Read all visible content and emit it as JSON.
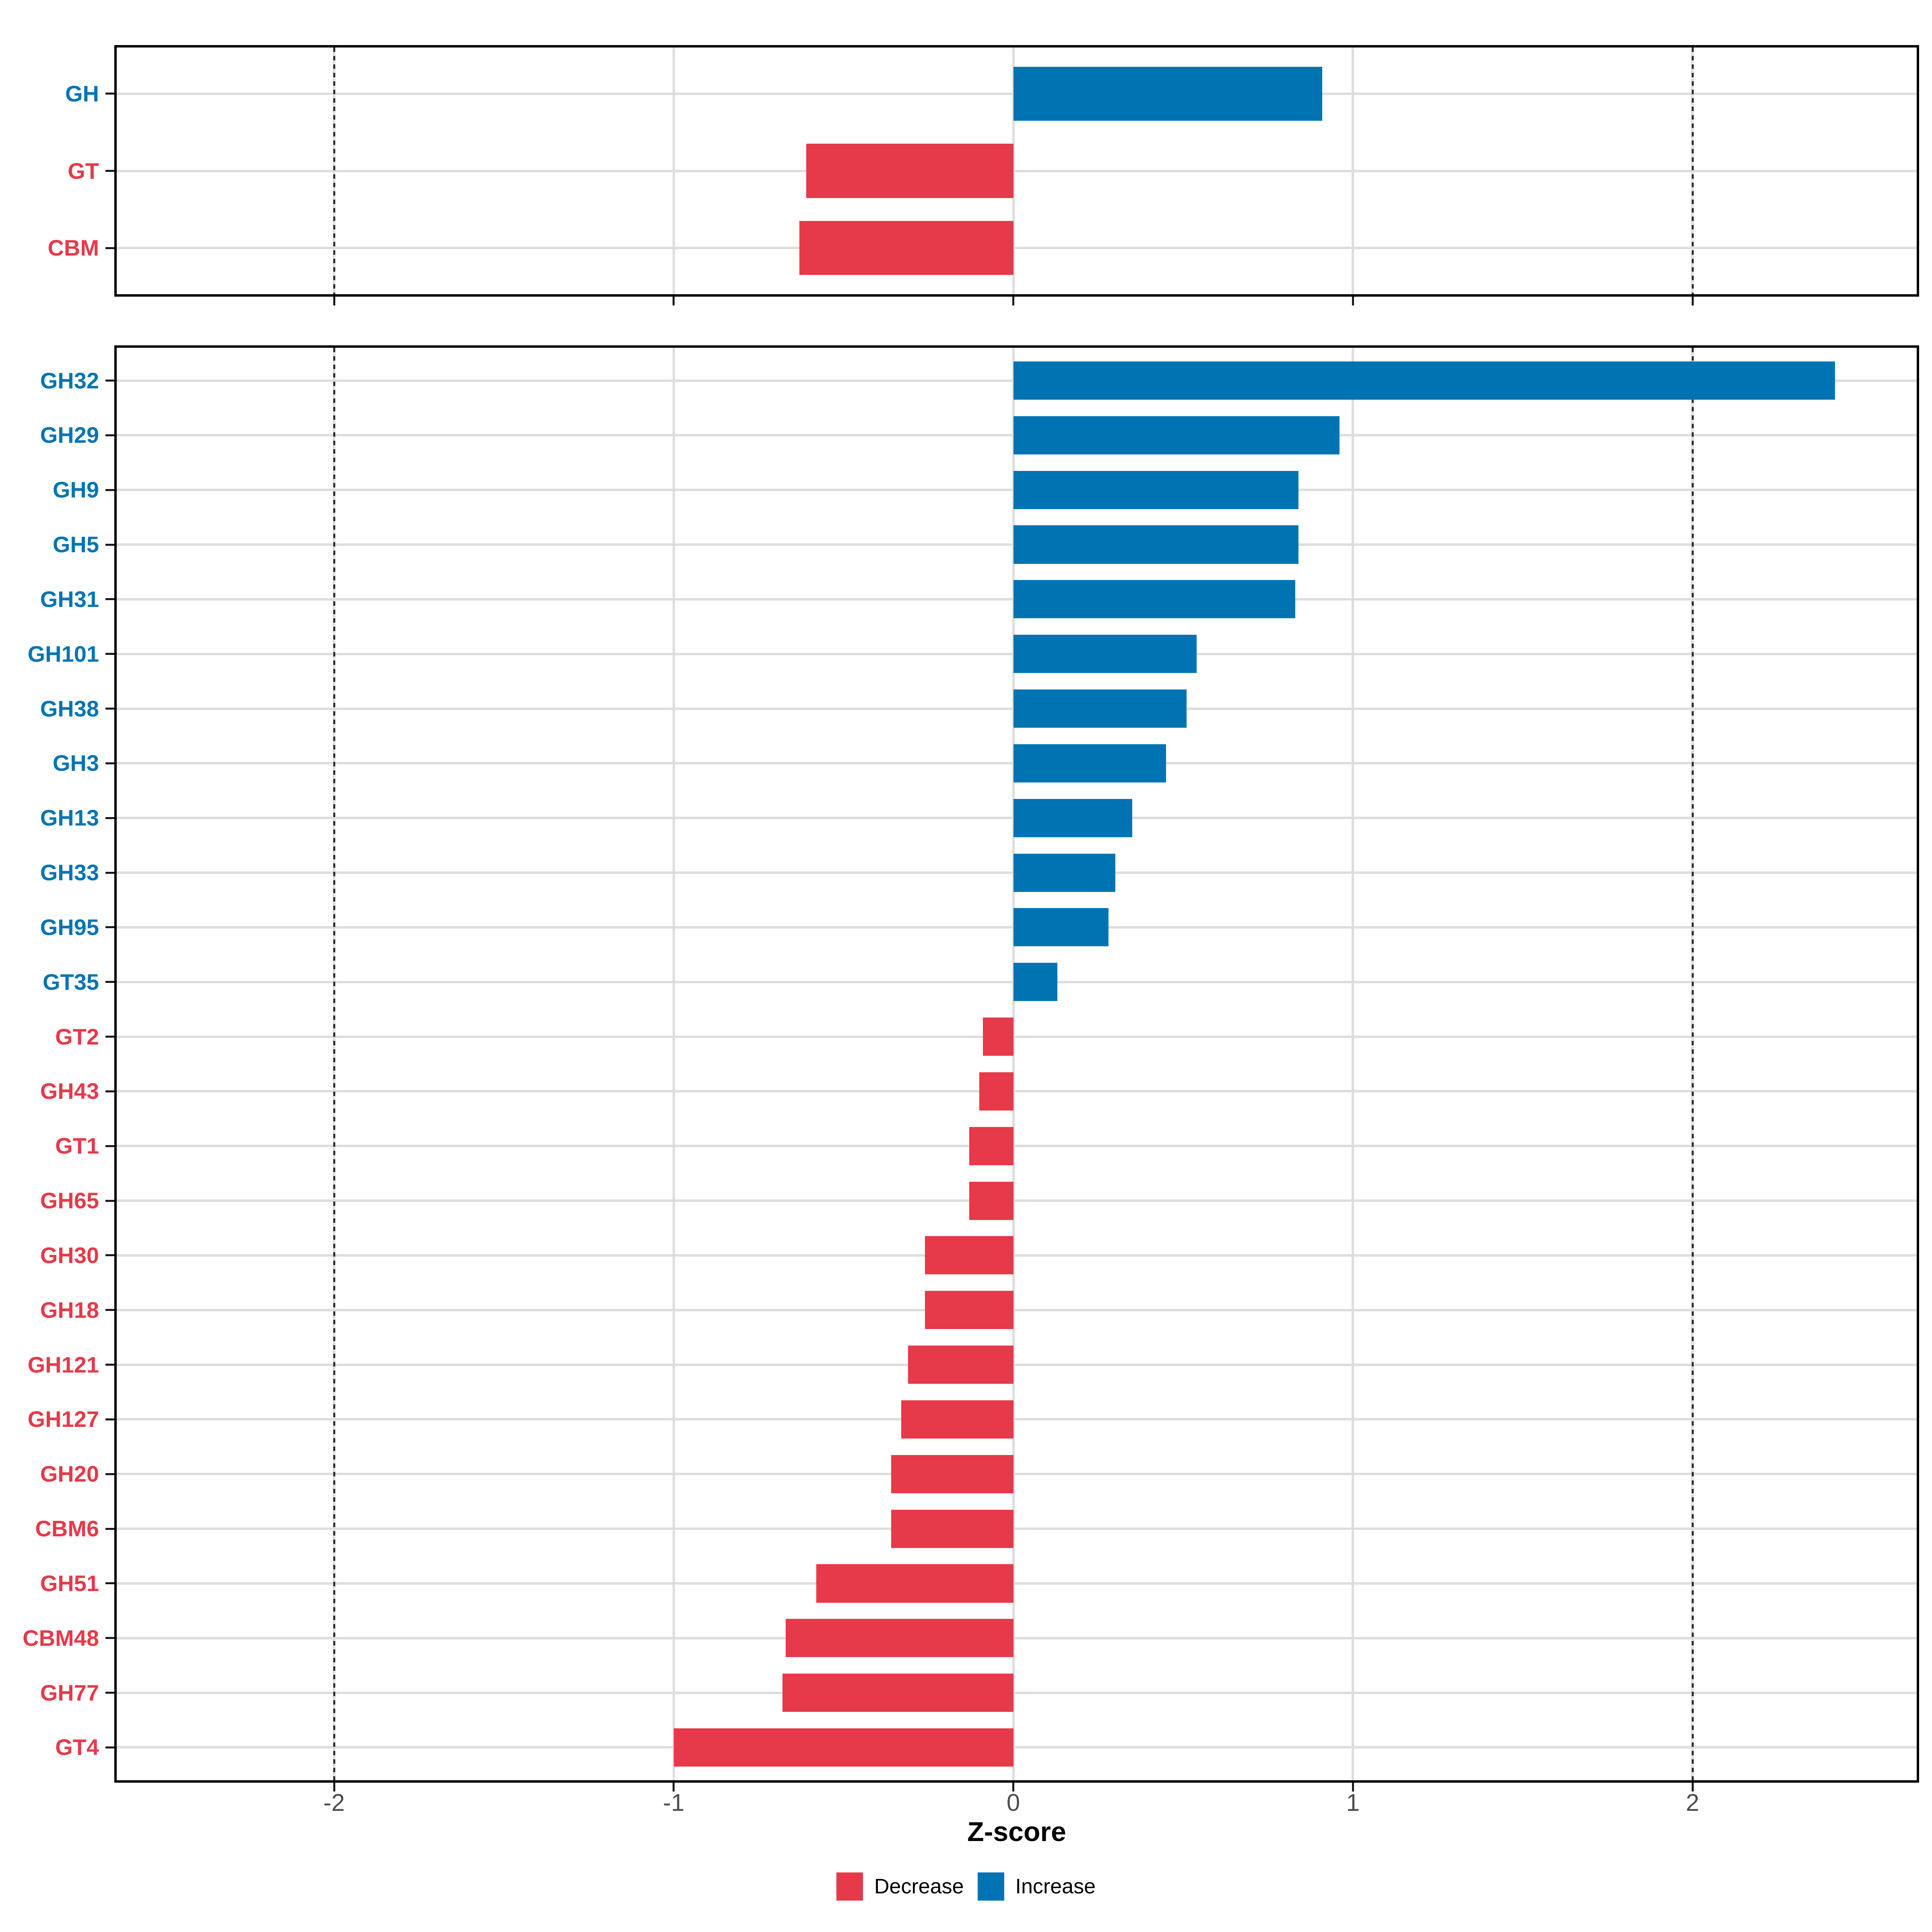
{
  "axis": {
    "xlabel": "Z-score",
    "tick_labels": [
      "-2",
      "-1",
      "0",
      "1",
      "2"
    ],
    "tick_values": [
      -2,
      -1,
      0,
      1,
      2
    ],
    "reference_lines": [
      -2,
      2
    ],
    "xlim": [
      -2.64,
      2.66
    ]
  },
  "legend": {
    "items": [
      {
        "label": "Decrease",
        "color": "#E6394A"
      },
      {
        "label": "Increase",
        "color": "#0074B3"
      }
    ]
  },
  "colors": {
    "increase": "#0074B3",
    "decrease": "#E6394A",
    "gridline": "#DDDDDD",
    "axis_text": "#4D4D4D",
    "panel_border": "#000000",
    "dotted_line": "#2E2E2E",
    "background": "#FFFFFF"
  },
  "chart_data": [
    {
      "type": "bar",
      "orientation": "horizontal",
      "panel": "family-summary",
      "title": "",
      "xlabel": "Z-score",
      "xlim": [
        -2.64,
        2.66
      ],
      "grid": true,
      "categories": [
        "GH",
        "GT",
        "CBM"
      ],
      "values": [
        0.91,
        -0.61,
        -0.63
      ],
      "directions": [
        "Increase",
        "Decrease",
        "Decrease"
      ]
    },
    {
      "type": "bar",
      "orientation": "horizontal",
      "panel": "family-detail",
      "title": "",
      "xlabel": "Z-score",
      "xlim": [
        -2.64,
        2.66
      ],
      "grid": true,
      "categories": [
        "GH32",
        "GH29",
        "GH9",
        "GH5",
        "GH31",
        "GH101",
        "GH38",
        "GH3",
        "GH13",
        "GH33",
        "GH95",
        "GT35",
        "GT2",
        "GH43",
        "GT1",
        "GH65",
        "GH30",
        "GH18",
        "GH121",
        "GH127",
        "GH20",
        "CBM6",
        "GH51",
        "CBM48",
        "GH77",
        "GT4"
      ],
      "values": [
        2.42,
        0.96,
        0.84,
        0.84,
        0.83,
        0.54,
        0.51,
        0.45,
        0.35,
        0.3,
        0.28,
        0.13,
        -0.09,
        -0.1,
        -0.13,
        -0.13,
        -0.26,
        -0.26,
        -0.31,
        -0.33,
        -0.36,
        -0.36,
        -0.58,
        -0.67,
        -0.68,
        -1.0
      ],
      "directions": [
        "Increase",
        "Increase",
        "Increase",
        "Increase",
        "Increase",
        "Increase",
        "Increase",
        "Increase",
        "Increase",
        "Increase",
        "Increase",
        "Increase",
        "Decrease",
        "Decrease",
        "Decrease",
        "Decrease",
        "Decrease",
        "Decrease",
        "Decrease",
        "Decrease",
        "Decrease",
        "Decrease",
        "Decrease",
        "Decrease",
        "Decrease",
        "Decrease"
      ]
    }
  ]
}
